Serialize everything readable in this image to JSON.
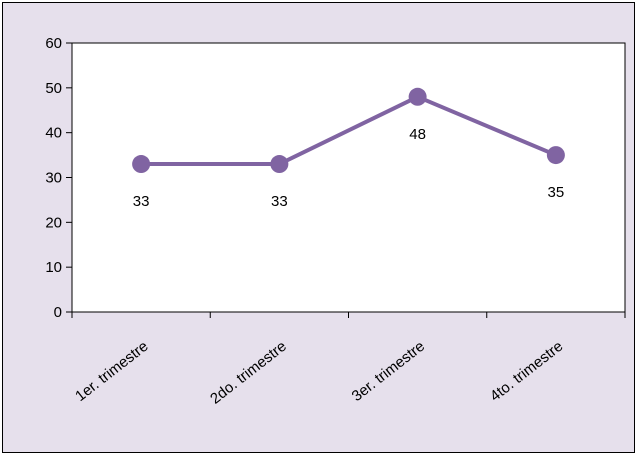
{
  "chart_data": {
    "type": "line",
    "categories": [
      "1er. trimestre",
      "2do. trimestre",
      "3er. trimestre",
      "4to. trimestre"
    ],
    "values": [
      33,
      33,
      48,
      35
    ],
    "data_labels": [
      "33",
      "33",
      "48",
      "35"
    ],
    "ylim": [
      0,
      60
    ],
    "yticks": [
      0,
      10,
      20,
      30,
      40,
      50,
      60
    ],
    "ytick_labels": [
      "0",
      "10",
      "20",
      "30",
      "40",
      "50",
      "60"
    ],
    "grid": false,
    "legend": "none",
    "line_color": "#8064a2",
    "background_color": "#e6e0ec",
    "plot_background_color": "#ffffff"
  }
}
